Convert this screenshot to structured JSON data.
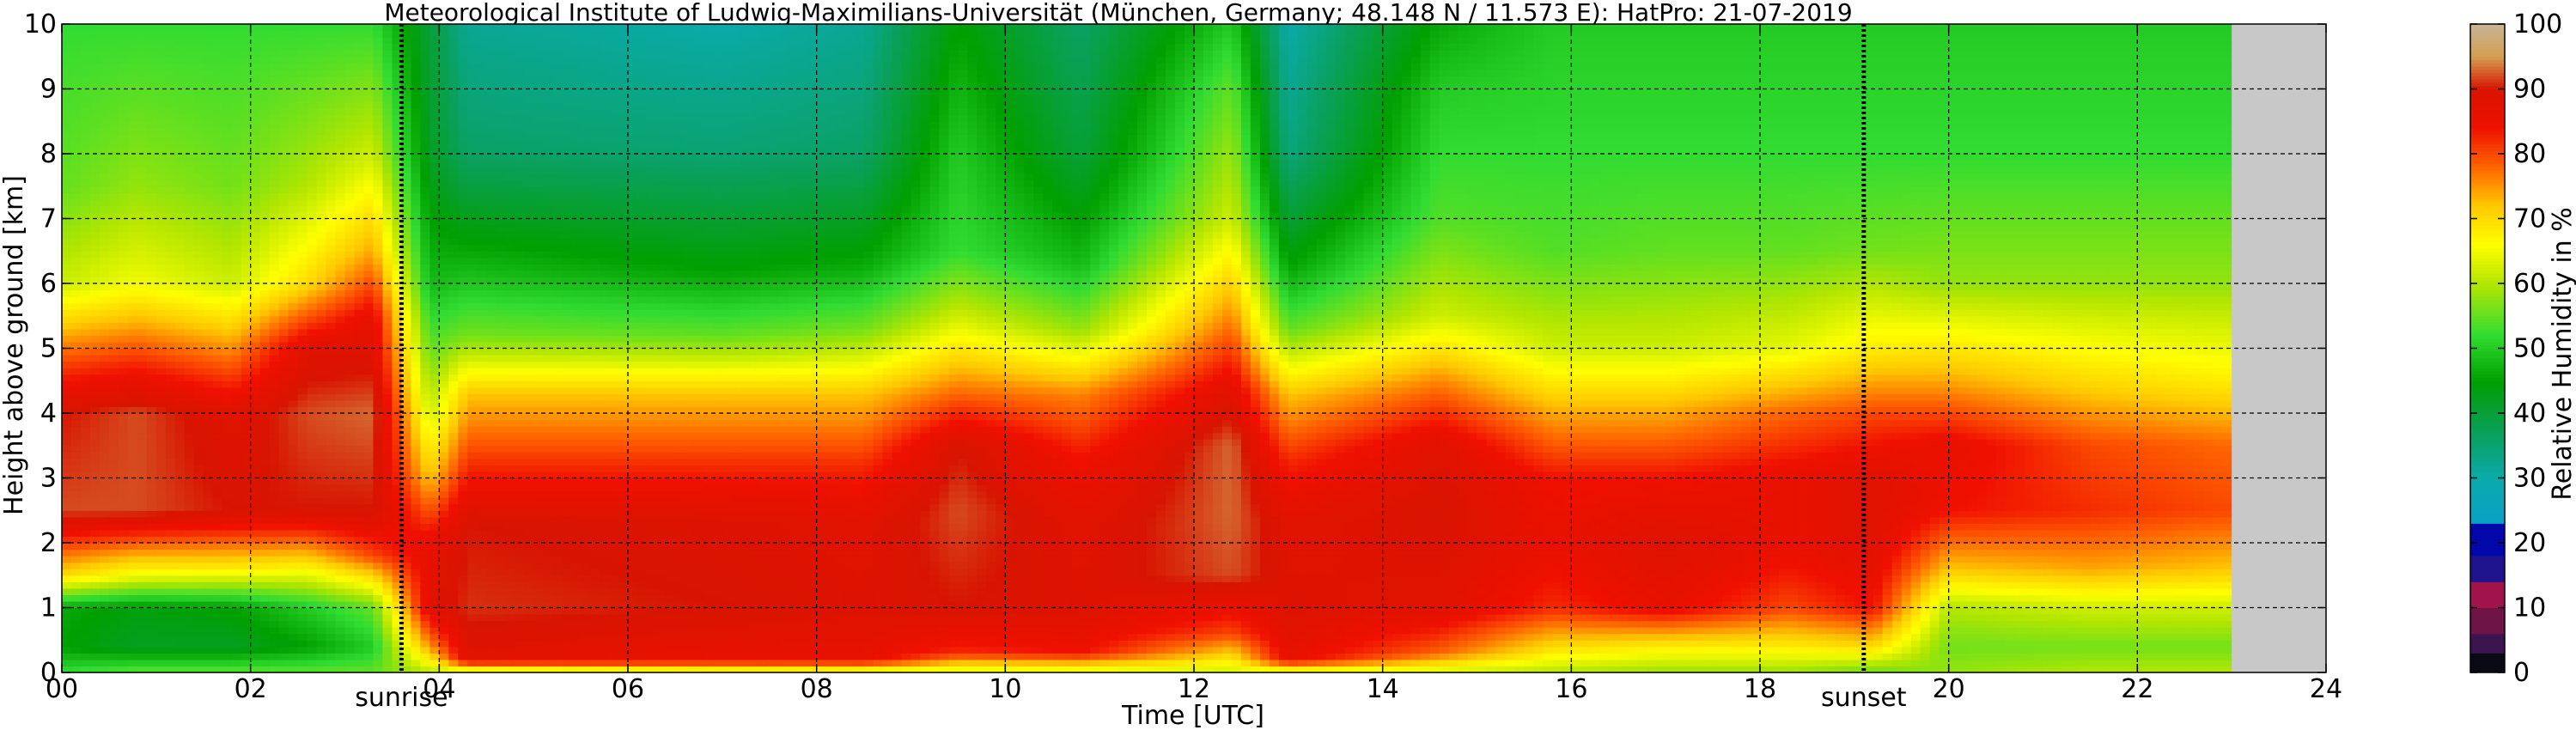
{
  "chart_data": {
    "type": "heatmap",
    "title": "Meteorological Institute of Ludwig-Maximilians-Universität (München, Germany; 48.148 N / 11.573 E):    HatPro: 21-07-2019",
    "xlabel": "Time [UTC]",
    "ylabel": "Height above ground [km]",
    "xlim": [
      0,
      24
    ],
    "ylim": [
      0,
      10
    ],
    "x_ticks": [
      "00",
      "02",
      "04",
      "06",
      "08",
      "10",
      "12",
      "14",
      "16",
      "18",
      "20",
      "22",
      "24"
    ],
    "y_ticks": [
      "0",
      "1",
      "2",
      "3",
      "4",
      "5",
      "6",
      "7",
      "8",
      "9",
      "10"
    ],
    "grid": true,
    "data_end_hour": 23.0,
    "missing_color": "#c8c8c8",
    "sunrise": {
      "label": "sunrise",
      "hour": 3.6
    },
    "sunset": {
      "label": "sunset",
      "hour": 19.1
    },
    "colorbar": {
      "label": "Relative Humidity in %",
      "range": [
        0,
        100
      ],
      "ticks": [
        "0",
        "10",
        "20",
        "30",
        "40",
        "50",
        "60",
        "70",
        "80",
        "90",
        "100"
      ],
      "bands": [
        {
          "from": 0,
          "to": 3,
          "color": "#0a0a14"
        },
        {
          "from": 3,
          "to": 6,
          "color": "#3c1450"
        },
        {
          "from": 6,
          "to": 10,
          "color": "#6e1446"
        },
        {
          "from": 10,
          "to": 14,
          "color": "#a0144b"
        },
        {
          "from": 14,
          "to": 18,
          "color": "#1e148c"
        },
        {
          "from": 18,
          "to": 23,
          "color": "#0008aa"
        },
        {
          "from": 23,
          "to": 100,
          "colors": [
            "#0aa0c8",
            "#0aaaaa",
            "#0aa05a",
            "#00a000",
            "#32dc32",
            "#b4e600",
            "#ffff00",
            "#ffc800",
            "#ff6400",
            "#f01000",
            "#d81400",
            "#d2a050",
            "#c8b496"
          ],
          "stops": [
            23,
            30,
            37,
            45,
            52,
            60,
            66,
            72,
            78,
            84,
            90,
            95,
            100
          ]
        }
      ]
    },
    "rh_profiles": [
      {
        "hour": 0.0,
        "heights": [
          0,
          0.4,
          1,
          1.5,
          2.5,
          4,
          4.8,
          6,
          7.5,
          10
        ],
        "rh": [
          52,
          45,
          46,
          70,
          92,
          90,
          80,
          62,
          55,
          52
        ]
      },
      {
        "hour": 0.8,
        "heights": [
          0,
          0.4,
          1,
          1.5,
          2.5,
          4,
          4.8,
          6,
          7.5,
          10
        ],
        "rh": [
          55,
          42,
          44,
          65,
          92,
          92,
          82,
          65,
          58,
          52
        ]
      },
      {
        "hour": 1.8,
        "heights": [
          0,
          0.4,
          1,
          1.6,
          2.5,
          4,
          4.8,
          6,
          7.5,
          10
        ],
        "rh": [
          55,
          42,
          45,
          68,
          90,
          88,
          78,
          62,
          56,
          52
        ]
      },
      {
        "hour": 2.6,
        "heights": [
          0,
          0.4,
          1,
          1.8,
          2.5,
          4,
          5,
          6,
          7.5,
          10
        ],
        "rh": [
          55,
          45,
          50,
          72,
          90,
          92,
          88,
          70,
          60,
          52
        ]
      },
      {
        "hour": 3.3,
        "heights": [
          0,
          0.4,
          1,
          1.8,
          2.5,
          4,
          5.5,
          6.5,
          8,
          10
        ],
        "rh": [
          55,
          50,
          55,
          80,
          90,
          93,
          86,
          74,
          62,
          52
        ]
      },
      {
        "hour": 3.9,
        "heights": [
          0,
          0.4,
          1,
          2,
          3,
          4,
          5,
          6,
          8,
          10
        ],
        "rh": [
          60,
          75,
          88,
          86,
          72,
          62,
          55,
          48,
          42,
          40
        ]
      },
      {
        "hour": 4.3,
        "heights": [
          0,
          0.2,
          1,
          2.3,
          3.2,
          4.3,
          5.2,
          6.2,
          8,
          10
        ],
        "rh": [
          60,
          88,
          91,
          90,
          82,
          72,
          56,
          48,
          36,
          32
        ]
      },
      {
        "hour": 7.0,
        "heights": [
          0,
          0.2,
          1,
          2.3,
          3.2,
          4.3,
          5.2,
          6.2,
          8,
          10
        ],
        "rh": [
          62,
          86,
          90,
          89,
          82,
          72,
          55,
          45,
          35,
          30
        ]
      },
      {
        "hour": 8.5,
        "heights": [
          0,
          0.2,
          1,
          2.3,
          3.2,
          4.3,
          5.3,
          6.3,
          8,
          10
        ],
        "rh": [
          62,
          86,
          89,
          88,
          82,
          72,
          56,
          46,
          36,
          32
        ]
      },
      {
        "hour": 9.5,
        "heights": [
          0,
          0.3,
          1,
          2.5,
          3.5,
          4.3,
          5.5,
          6.5,
          8,
          10
        ],
        "rh": [
          62,
          82,
          90,
          92,
          90,
          78,
          62,
          52,
          50,
          45
        ]
      },
      {
        "hour": 10.8,
        "heights": [
          0,
          0.3,
          1,
          2.3,
          3.3,
          4.3,
          5.3,
          6.3,
          8,
          10
        ],
        "rh": [
          62,
          84,
          89,
          88,
          84,
          76,
          58,
          48,
          40,
          36
        ]
      },
      {
        "hour": 12.4,
        "heights": [
          0,
          0.6,
          1.5,
          2.5,
          3.5,
          4.3,
          5.5,
          7,
          9,
          10
        ],
        "rh": [
          62,
          80,
          92,
          93,
          93,
          88,
          76,
          62,
          55,
          50
        ]
      },
      {
        "hour": 13.0,
        "heights": [
          0,
          0.2,
          1,
          2.3,
          3.3,
          4.3,
          5.3,
          6.3,
          8,
          10
        ],
        "rh": [
          62,
          86,
          89,
          88,
          82,
          72,
          55,
          45,
          34,
          30
        ]
      },
      {
        "hour": 14.6,
        "heights": [
          0,
          0.3,
          1,
          2.5,
          3.5,
          4.5,
          5.5,
          7,
          9,
          10
        ],
        "rh": [
          62,
          78,
          88,
          90,
          88,
          76,
          62,
          54,
          50,
          46
        ]
      },
      {
        "hour": 15.8,
        "heights": [
          0,
          0.4,
          1,
          2,
          3,
          4,
          5,
          6.5,
          8,
          10
        ],
        "rh": [
          60,
          70,
          82,
          86,
          84,
          74,
          62,
          54,
          52,
          50
        ]
      },
      {
        "hour": 17.0,
        "heights": [
          0,
          0.4,
          1,
          2,
          3,
          4,
          5,
          6.5,
          8,
          10
        ],
        "rh": [
          58,
          68,
          86,
          89,
          84,
          74,
          62,
          55,
          52,
          50
        ]
      },
      {
        "hour": 18.3,
        "heights": [
          0,
          0.4,
          1,
          2,
          3,
          4,
          5,
          6.5,
          8,
          10
        ],
        "rh": [
          58,
          68,
          80,
          86,
          86,
          78,
          64,
          55,
          52,
          50
        ]
      },
      {
        "hour": 19.2,
        "heights": [
          0,
          0.4,
          1,
          2,
          3,
          4,
          5,
          6.5,
          8,
          10
        ],
        "rh": [
          55,
          70,
          84,
          88,
          88,
          80,
          68,
          56,
          52,
          50
        ]
      },
      {
        "hour": 20.0,
        "heights": [
          0,
          0.4,
          1,
          1.6,
          2.5,
          3.5,
          4.5,
          6,
          8,
          10
        ],
        "rh": [
          58,
          56,
          60,
          72,
          84,
          86,
          74,
          58,
          52,
          50
        ]
      },
      {
        "hour": 21.5,
        "heights": [
          0,
          0.4,
          1,
          1.6,
          2.5,
          3.5,
          4.5,
          6,
          8,
          10
        ],
        "rh": [
          60,
          56,
          62,
          74,
          82,
          80,
          70,
          58,
          52,
          50
        ]
      },
      {
        "hour": 22.9,
        "heights": [
          0,
          0.4,
          1,
          1.6,
          2.5,
          3.5,
          4.5,
          6,
          8,
          10
        ],
        "rh": [
          60,
          56,
          62,
          72,
          80,
          78,
          68,
          58,
          52,
          50
        ]
      }
    ]
  }
}
